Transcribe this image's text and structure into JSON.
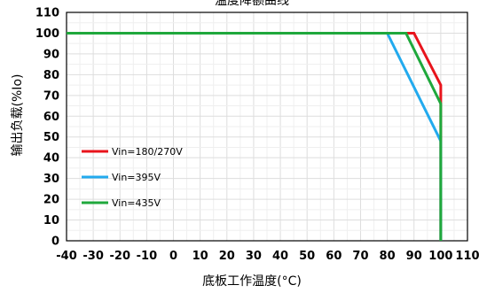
{
  "chart_data": {
    "type": "line",
    "title": "温度降额曲线",
    "xlabel": "底板工作温度(°C)",
    "ylabel": "输出负载(%Io)",
    "xlim": [
      -40,
      110
    ],
    "ylim": [
      0,
      110
    ],
    "xticks": [
      -40,
      -30,
      -20,
      -10,
      0,
      10,
      20,
      30,
      40,
      50,
      60,
      70,
      80,
      90,
      100,
      110
    ],
    "yticks": [
      0,
      10,
      20,
      30,
      40,
      50,
      60,
      70,
      80,
      90,
      100,
      110
    ],
    "grid": true,
    "legend_position": "lower-left",
    "series": [
      {
        "name": "Vin=180/270V",
        "color": "#e8141c",
        "x": [
          -40,
          90,
          100,
          100
        ],
        "y": [
          100,
          100,
          75,
          0
        ]
      },
      {
        "name": "Vin=395V",
        "color": "#22aaee",
        "x": [
          -40,
          80,
          100,
          100
        ],
        "y": [
          100,
          100,
          48,
          0
        ]
      },
      {
        "name": "Vin=435V",
        "color": "#1fa83c",
        "x": [
          -40,
          87,
          100,
          100
        ],
        "y": [
          100,
          100,
          66,
          0
        ]
      }
    ]
  }
}
